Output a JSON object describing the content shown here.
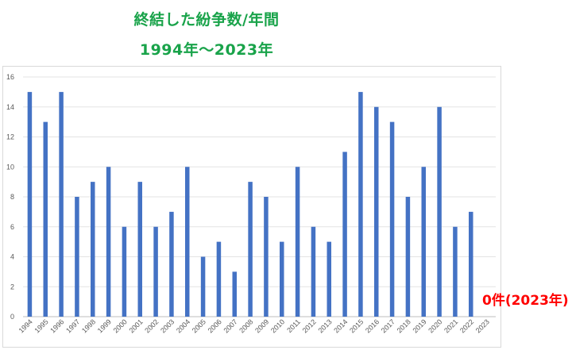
{
  "header": {
    "title_line1": "終結した紛争数/年間",
    "title_line2": "1994年～2023年"
  },
  "annotation": {
    "text": "0件(2023年)",
    "color": "#ff0000"
  },
  "chart_data": {
    "type": "bar",
    "categories": [
      "1994",
      "1995",
      "1996",
      "1997",
      "1998",
      "1999",
      "2000",
      "2001",
      "2002",
      "2003",
      "2004",
      "2005",
      "2006",
      "2007",
      "2008",
      "2009",
      "2010",
      "2011",
      "2012",
      "2013",
      "2014",
      "2015",
      "2016",
      "2017",
      "2018",
      "2019",
      "2020",
      "2021",
      "2022",
      "2023"
    ],
    "values": [
      15,
      13,
      15,
      8,
      9,
      10,
      6,
      9,
      6,
      7,
      10,
      4,
      5,
      3,
      9,
      8,
      5,
      10,
      6,
      5,
      11,
      15,
      14,
      13,
      8,
      10,
      14,
      6,
      7,
      0
    ],
    "ylim": [
      0,
      16
    ],
    "yticks": [
      0,
      2,
      4,
      6,
      8,
      10,
      12,
      14,
      16
    ],
    "grid": true,
    "bar_color": "#4472c4",
    "title_color": "#19a34a"
  }
}
